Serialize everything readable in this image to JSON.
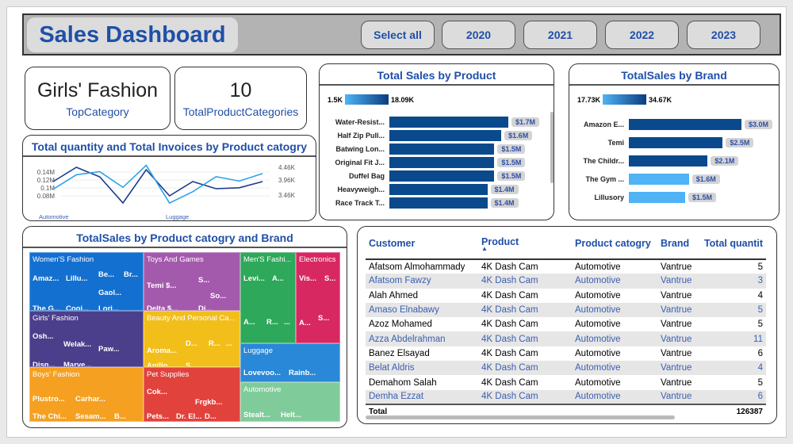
{
  "header": {
    "title": "Sales Dashboard",
    "filters": [
      "Select all",
      "2020",
      "2021",
      "2022",
      "2023"
    ]
  },
  "kpis": [
    {
      "value": "Girls' Fashion",
      "label": "TopCategory"
    },
    {
      "value": "10",
      "label": "TotalProductCategories"
    }
  ],
  "colors": {
    "accent": "#1f4fa8",
    "bar_dark": "#0a4a8c",
    "bar_light": "#4fb3f5"
  },
  "line_chart": {
    "title": "Total quantity and Total Invoices by Product catogry",
    "left_ticks": [
      "0.14M",
      "0.12M",
      "0.1M",
      "0.08M"
    ],
    "right_ticks": [
      "4.46K",
      "3.96K",
      "3.46K"
    ],
    "x_labels": [
      "Automotive",
      "Luggage"
    ],
    "chart_data": {
      "type": "line",
      "series": [
        {
          "values": [
            0.125,
            0.155,
            0.135,
            0.08,
            0.15,
            0.095,
            0.125,
            0.11,
            0.112,
            0.125
          ],
          "axis": "left",
          "color": "#1a3a8a"
        },
        {
          "values": [
            3.9,
            4.36,
            4.46,
            3.96,
            4.66,
            3.46,
            3.82,
            4.3,
            4.16,
            4.4
          ],
          "axis": "right",
          "color": "#2ea3e8"
        }
      ],
      "ylim_left": [
        0.07,
        0.165
      ],
      "ylim_right": [
        3.31,
        4.75
      ]
    }
  },
  "product_chart": {
    "title": "Total Sales by Product",
    "legend_min": "1.5K",
    "legend_max": "18.09K",
    "chart_data": {
      "type": "bar",
      "categories": [
        "Water-Resist...",
        "Half Zip Pull...",
        "Batwing Lon...",
        "Original Fit J...",
        "Duffel Bag",
        "Heavyweigh...",
        "Race Track T..."
      ],
      "values": [
        1.7,
        1.6,
        1.5,
        1.5,
        1.5,
        1.4,
        1.4
      ],
      "labels": [
        "$1.7M",
        "$1.6M",
        "$1.5M",
        "$1.5M",
        "$1.5M",
        "$1.4M",
        "$1.4M"
      ]
    }
  },
  "brand_chart": {
    "title": "TotalSales by Brand",
    "legend_min": "17.73K",
    "legend_max": "34.67K",
    "chart_data": {
      "type": "bar",
      "categories": [
        "Amazon E...",
        "Temi",
        "The Childr...",
        "The Gym ...",
        "Lillusory"
      ],
      "values": [
        3.0,
        2.5,
        2.1,
        1.6,
        1.5
      ],
      "labels": [
        "$3.0M",
        "$2.5M",
        "$2.1M",
        "$1.6M",
        "$1.5M"
      ],
      "shade": [
        "dark",
        "dark",
        "dark",
        "light",
        "light"
      ]
    }
  },
  "treemap": {
    "title": "TotalSales by Product catogry and Brand",
    "cells": [
      {
        "cat": "Women'S Fashion",
        "color": "#1470d0",
        "brands": [
          "Amaz...",
          "Lillu...",
          "Be...",
          "Br...",
          "Gaol...",
          "The G...",
          "Cooj...",
          "Lori..."
        ]
      },
      {
        "cat": "Girls' Fashion",
        "color": "#4b3f8c",
        "brands": [
          "Osh...",
          "Welak...",
          "Paw...",
          "Disn...",
          "Marve..."
        ]
      },
      {
        "cat": "Boys' Fashion",
        "color": "#f5a020",
        "brands": [
          "Plustro...",
          "Carhar...",
          "The Chi...",
          "Sesam...",
          "B..."
        ]
      },
      {
        "cat": "Toys And Games",
        "color": "#a45aac",
        "brands": [
          "Temi $...",
          "S...",
          "So...",
          "Delta $...",
          "Di..."
        ]
      },
      {
        "cat": "Beauty And Personal Ca...",
        "color": "#f2be1a",
        "brands": [
          "D...",
          "R...",
          "...",
          "Aroma...",
          "Anillo ...",
          "S..."
        ]
      },
      {
        "cat": "Pet Supplies",
        "color": "#e2423c",
        "brands": [
          "Cok...",
          "Frgkb...",
          "Pets...",
          "Dr. El...",
          "D..."
        ]
      },
      {
        "cat": "Men'S Fashi...",
        "color": "#2ea85a",
        "brands": [
          "Levi...",
          "A...",
          "A...",
          "R...",
          "..."
        ]
      },
      {
        "cat": "Electronics",
        "color": "#d72862",
        "brands": [
          "Vis...",
          "S...",
          "A...",
          "S..."
        ]
      },
      {
        "cat": "Luggage",
        "color": "#2a88d8",
        "brands": [
          "Lovevoo...",
          "Rainb..."
        ]
      },
      {
        "cat": "Automotive",
        "color": "#7fcc9a",
        "brands": [
          "Stealt...",
          "Helt..."
        ]
      }
    ]
  },
  "table": {
    "columns": [
      "Customer",
      "Product",
      "Product catogry",
      "Brand",
      "Total quantit"
    ],
    "rows": [
      [
        "Afatsom Almohammady",
        "4K Dash Cam",
        "Automotive",
        "Vantrue",
        "5"
      ],
      [
        "Afatsom Fawzy",
        "4K Dash Cam",
        "Automotive",
        "Vantrue",
        "3"
      ],
      [
        "Alah Ahmed",
        "4K Dash Cam",
        "Automotive",
        "Vantrue",
        "4"
      ],
      [
        "Amaso Elnabawy",
        "4K Dash Cam",
        "Automotive",
        "Vantrue",
        "5"
      ],
      [
        "Azoz Mohamed",
        "4K Dash Cam",
        "Automotive",
        "Vantrue",
        "5"
      ],
      [
        "Azza Abdelrahman",
        "4K Dash Cam",
        "Automotive",
        "Vantrue",
        "11"
      ],
      [
        "Banez Elsayad",
        "4K Dash Cam",
        "Automotive",
        "Vantrue",
        "6"
      ],
      [
        "Belat Aldris",
        "4K Dash Cam",
        "Automotive",
        "Vantrue",
        "4"
      ],
      [
        "Demahom Salah",
        "4K Dash Cam",
        "Automotive",
        "Vantrue",
        "5"
      ],
      [
        "Demha Ezzat",
        "4K Dash Cam",
        "Automotive",
        "Vantrue",
        "6"
      ]
    ],
    "total_label": "Total",
    "total_value": "126387"
  }
}
